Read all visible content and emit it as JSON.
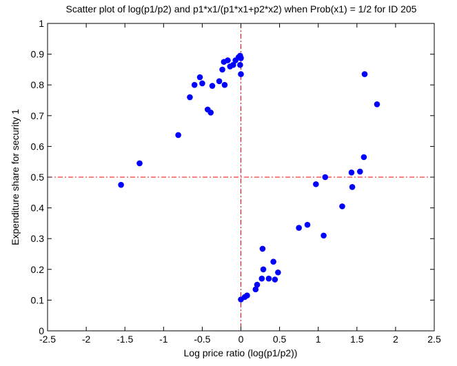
{
  "chart_data": {
    "type": "scatter",
    "title": "Scatter plot of log(p1/p2) and p1*x1/(p1*x1+p2*x2) when Prob(x1) = 1/2 for ID 205",
    "xlabel": "Log price ratio (log(p1/p2))",
    "ylabel": "Expenditure share for security 1",
    "xlim": [
      -2.5,
      2.5
    ],
    "ylim": [
      0,
      1
    ],
    "x_ticks": [
      -2.5,
      -2,
      -1.5,
      -1,
      -0.5,
      0,
      0.5,
      1,
      1.5,
      2,
      2.5
    ],
    "x_tick_labels": [
      "-2.5",
      "-2",
      "-1.5",
      "-1",
      "-0.5",
      "0",
      "0.5",
      "1",
      "1.5",
      "2",
      "2.5"
    ],
    "y_ticks": [
      0,
      0.1,
      0.2,
      0.3,
      0.4,
      0.5,
      0.6,
      0.7,
      0.8,
      0.9,
      1
    ],
    "y_tick_labels": [
      "0",
      "0.1",
      "0.2",
      "0.3",
      "0.4",
      "0.5",
      "0.6",
      "0.7",
      "0.8",
      "0.9",
      "1"
    ],
    "grid": false,
    "marker_color": "#0000ff",
    "reference_line_color": "#ff0000",
    "reference_lines": {
      "vertical_x": 0,
      "horizontal_y": 0.5,
      "style": "dash-dot"
    },
    "series": [
      {
        "points": [
          {
            "x": -1.55,
            "y": 0.475
          },
          {
            "x": -1.31,
            "y": 0.545
          },
          {
            "x": -0.81,
            "y": 0.637
          },
          {
            "x": -0.66,
            "y": 0.76
          },
          {
            "x": -0.6,
            "y": 0.8
          },
          {
            "x": -0.53,
            "y": 0.825
          },
          {
            "x": -0.5,
            "y": 0.805
          },
          {
            "x": -0.43,
            "y": 0.72
          },
          {
            "x": -0.39,
            "y": 0.71
          },
          {
            "x": -0.37,
            "y": 0.797
          },
          {
            "x": -0.28,
            "y": 0.812
          },
          {
            "x": -0.24,
            "y": 0.85
          },
          {
            "x": -0.22,
            "y": 0.875
          },
          {
            "x": -0.21,
            "y": 0.8
          },
          {
            "x": -0.17,
            "y": 0.88
          },
          {
            "x": -0.14,
            "y": 0.86
          },
          {
            "x": -0.1,
            "y": 0.865
          },
          {
            "x": -0.07,
            "y": 0.88
          },
          {
            "x": -0.03,
            "y": 0.89
          },
          {
            "x": -0.01,
            "y": 0.895
          },
          {
            "x": 0.0,
            "y": 0.887
          },
          {
            "x": -0.01,
            "y": 0.865
          },
          {
            "x": 0.0,
            "y": 0.835
          },
          {
            "x": 0.0,
            "y": 0.102
          },
          {
            "x": 0.05,
            "y": 0.11
          },
          {
            "x": 0.08,
            "y": 0.115
          },
          {
            "x": 0.19,
            "y": 0.135
          },
          {
            "x": 0.21,
            "y": 0.15
          },
          {
            "x": 0.27,
            "y": 0.17
          },
          {
            "x": 0.28,
            "y": 0.267
          },
          {
            "x": 0.29,
            "y": 0.2
          },
          {
            "x": 0.36,
            "y": 0.17
          },
          {
            "x": 0.42,
            "y": 0.225
          },
          {
            "x": 0.44,
            "y": 0.167
          },
          {
            "x": 0.48,
            "y": 0.19
          },
          {
            "x": 0.75,
            "y": 0.335
          },
          {
            "x": 0.86,
            "y": 0.345
          },
          {
            "x": 0.97,
            "y": 0.477
          },
          {
            "x": 1.07,
            "y": 0.31
          },
          {
            "x": 1.09,
            "y": 0.5
          },
          {
            "x": 1.31,
            "y": 0.405
          },
          {
            "x": 1.43,
            "y": 0.515
          },
          {
            "x": 1.44,
            "y": 0.468
          },
          {
            "x": 1.54,
            "y": 0.518
          },
          {
            "x": 1.59,
            "y": 0.565
          },
          {
            "x": 1.6,
            "y": 0.835
          },
          {
            "x": 1.76,
            "y": 0.737
          }
        ]
      }
    ]
  }
}
